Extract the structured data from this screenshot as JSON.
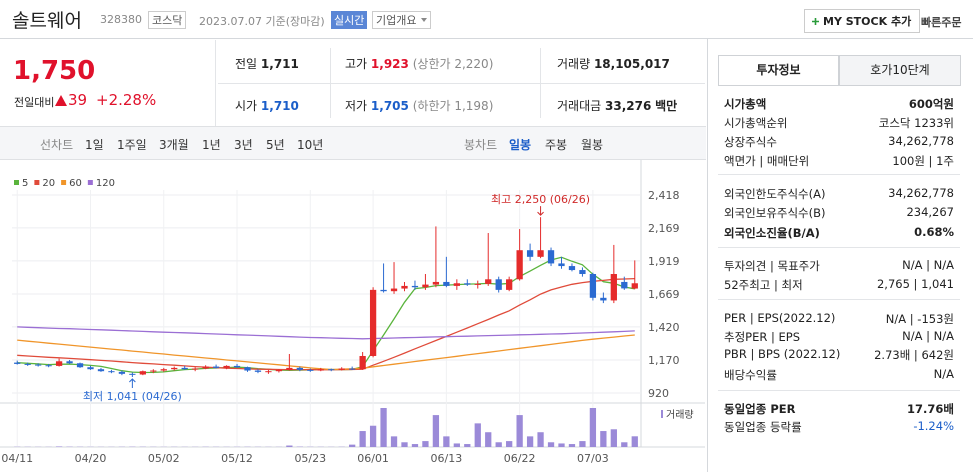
{
  "header": {
    "name": "솔트웨어",
    "code": "328380",
    "market": "코스닥",
    "date": "2023.07.07 기준(장마감)",
    "badge": "실시간",
    "company_button": "기업개요",
    "mystock_button": "MY STOCK 추가",
    "order_button": "빠른주문"
  },
  "quote": {
    "price": "1,750",
    "change_label": "전일대비",
    "change": "39",
    "change_rate": "+2.28%"
  },
  "summary": [
    [
      {
        "label": "전일",
        "value": "1,711"
      },
      {
        "label": "고가",
        "value": "1,923",
        "note": "(상한가 2,220)"
      },
      {
        "label": "거래량",
        "value": "18,105,017"
      }
    ],
    [
      {
        "label": "시가",
        "value": "1,710"
      },
      {
        "label": "저가",
        "value": "1,705",
        "note": "(하한가 1,198)"
      },
      {
        "label": "거래대금",
        "value": "33,276",
        "unit": "백만"
      }
    ]
  ],
  "period_tabs": {
    "line_label": "선차트",
    "line": [
      "1일",
      "1주일",
      "3개월",
      "1년",
      "3년",
      "5년",
      "10년"
    ],
    "candle_label": "봉차트",
    "candle": [
      "일봉",
      "주봉",
      "월봉"
    ]
  },
  "chart_data": {
    "type": "candlestick",
    "categories": [
      "04/11",
      null,
      null,
      null,
      null,
      null,
      null,
      "04/20",
      null,
      null,
      null,
      null,
      null,
      null,
      "05/02",
      null,
      null,
      null,
      null,
      null,
      null,
      "05/12",
      null,
      null,
      null,
      null,
      null,
      null,
      "05/23",
      null,
      null,
      null,
      null,
      null,
      "06/01",
      null,
      null,
      null,
      null,
      null,
      null,
      "06/13",
      null,
      null,
      null,
      null,
      null,
      null,
      "06/22",
      null,
      null,
      null,
      null,
      null,
      null,
      "07/03",
      null,
      null,
      null,
      null
    ],
    "open": [
      1150,
      1140,
      1135,
      1130,
      1125,
      1160,
      1145,
      1115,
      1100,
      1085,
      1080,
      1065,
      1060,
      1085,
      1090,
      1100,
      1110,
      1100,
      1105,
      1120,
      1110,
      1125,
      1115,
      1090,
      1080,
      1085,
      1095,
      1110,
      1095,
      1090,
      1100,
      1095,
      1105,
      1100,
      1200,
      1700,
      1690,
      1710,
      1730,
      1720,
      1740,
      1760,
      1730,
      1750,
      1740,
      1745,
      1780,
      1700,
      1780,
      2000,
      1950,
      2000,
      1900,
      1880,
      1850,
      1820,
      1640,
      1620,
      1760,
      1710
    ],
    "high": [
      1165,
      1150,
      1145,
      1140,
      1180,
      1170,
      1150,
      1125,
      1110,
      1095,
      1090,
      1075,
      1090,
      1100,
      1110,
      1120,
      1125,
      1115,
      1130,
      1135,
      1130,
      1140,
      1120,
      1100,
      1095,
      1100,
      1215,
      1120,
      1105,
      1110,
      1105,
      1115,
      1120,
      1230,
      1720,
      1900,
      1910,
      1760,
      1770,
      1820,
      2180,
      1950,
      1780,
      1780,
      1770,
      2130,
      1800,
      1800,
      2160,
      2050,
      2250,
      2020,
      1950,
      1900,
      1870,
      1830,
      1680,
      2040,
      1800,
      1923
    ],
    "low": [
      1135,
      1125,
      1120,
      1115,
      1120,
      1140,
      1110,
      1095,
      1080,
      1070,
      1055,
      1041,
      1055,
      1070,
      1080,
      1090,
      1095,
      1085,
      1100,
      1105,
      1100,
      1110,
      1080,
      1070,
      1065,
      1075,
      1090,
      1085,
      1080,
      1085,
      1085,
      1090,
      1095,
      1095,
      1190,
      1680,
      1670,
      1690,
      1700,
      1700,
      1720,
      1720,
      1700,
      1730,
      1710,
      1730,
      1680,
      1690,
      1770,
      1920,
      1940,
      1880,
      1860,
      1840,
      1800,
      1620,
      1600,
      1600,
      1700,
      1705
    ],
    "close": [
      1140,
      1135,
      1130,
      1125,
      1160,
      1145,
      1115,
      1100,
      1085,
      1080,
      1065,
      1060,
      1085,
      1090,
      1100,
      1110,
      1100,
      1105,
      1120,
      1110,
      1125,
      1115,
      1090,
      1080,
      1085,
      1095,
      1110,
      1095,
      1090,
      1100,
      1095,
      1105,
      1100,
      1200,
      1700,
      1690,
      1710,
      1730,
      1720,
      1740,
      1760,
      1730,
      1750,
      1740,
      1745,
      1780,
      1700,
      1780,
      2000,
      1950,
      2000,
      1900,
      1880,
      1850,
      1820,
      1640,
      1620,
      1820,
      1711,
      1750
    ],
    "volume": [
      400000,
      350000,
      300000,
      300000,
      900000,
      500000,
      400000,
      350000,
      300000,
      300000,
      400000,
      500000,
      450000,
      350000,
      300000,
      350000,
      300000,
      300000,
      400000,
      350000,
      300000,
      350000,
      400000,
      350000,
      300000,
      300000,
      2500000,
      600000,
      400000,
      350000,
      300000,
      400000,
      4000000,
      27000000,
      36000000,
      66000000,
      18000000,
      8000000,
      5000000,
      10000000,
      54000000,
      18000000,
      6000000,
      5000000,
      40000000,
      25000000,
      8000000,
      10000000,
      54000000,
      18000000,
      25000000,
      8000000,
      6000000,
      5000000,
      10000000,
      66000000,
      27000000,
      30000000,
      8000000,
      18105017
    ],
    "volume_label": "거래량",
    "series": [
      {
        "name": "5",
        "color": "#5ab43c",
        "values": [
          1150,
          1145,
          1140,
          1135,
          1138,
          1139,
          1135,
          1129,
          1121,
          1105,
          1089,
          1078,
          1075,
          1076,
          1080,
          1089,
          1097,
          1101,
          1107,
          1109,
          1112,
          1115,
          1112,
          1104,
          1099,
          1093,
          1092,
          1093,
          1095,
          1098,
          1098,
          1097,
          1098,
          1120,
          1240,
          1359,
          1480,
          1606,
          1710,
          1718,
          1732,
          1736,
          1740,
          1744,
          1745,
          1749,
          1743,
          1749,
          1801,
          1842,
          1886,
          1926,
          1946,
          1916,
          1890,
          1818,
          1762,
          1750,
          1722,
          1708
        ]
      },
      {
        "name": "20",
        "color": "#e04b3a",
        "values": [
          1205,
          1200,
          1195,
          1190,
          1186,
          1182,
          1177,
          1172,
          1167,
          1162,
          1156,
          1150,
          1145,
          1140,
          1135,
          1130,
          1125,
          1120,
          1116,
          1112,
          1108,
          1105,
          1102,
          1100,
          1099,
          1098,
          1097,
          1097,
          1096,
          1096,
          1096,
          1097,
          1098,
          1100,
          1130,
          1160,
          1190,
          1222,
          1254,
          1285,
          1317,
          1348,
          1380,
          1412,
          1444,
          1476,
          1510,
          1542,
          1585,
          1625,
          1668,
          1700,
          1722,
          1742,
          1755,
          1765,
          1772,
          1780,
          1782,
          1785
        ]
      },
      {
        "name": "60",
        "color": "#f0952a",
        "values": [
          1320,
          1312,
          1305,
          1297,
          1290,
          1282,
          1275,
          1267,
          1260,
          1252,
          1245,
          1237,
          1230,
          1222,
          1215,
          1207,
          1200,
          1192,
          1185,
          1178,
          1170,
          1163,
          1155,
          1148,
          1140,
          1133,
          1125,
          1118,
          1110,
          1103,
          1098,
          1100,
          1103,
          1108,
          1118,
          1128,
          1138,
          1148,
          1158,
          1168,
          1178,
          1188,
          1198,
          1208,
          1218,
          1228,
          1238,
          1248,
          1258,
          1268,
          1278,
          1288,
          1298,
          1308,
          1318,
          1327,
          1335,
          1343,
          1351,
          1359
        ]
      },
      {
        "name": "120",
        "color": "#9b6fd4",
        "values": [
          1420,
          1417,
          1414,
          1411,
          1408,
          1406,
          1403,
          1400,
          1398,
          1395,
          1392,
          1389,
          1386,
          1383,
          1380,
          1378,
          1375,
          1372,
          1369,
          1366,
          1363,
          1360,
          1358,
          1355,
          1352,
          1349,
          1346,
          1343,
          1340,
          1338,
          1336,
          1334,
          1332,
          1330,
          1332,
          1334,
          1336,
          1338,
          1340,
          1342,
          1344,
          1346,
          1348,
          1350,
          1352,
          1354,
          1356,
          1358,
          1360,
          1362,
          1364,
          1366,
          1368,
          1371,
          1374,
          1377,
          1380,
          1383,
          1386,
          1390
        ]
      }
    ],
    "annotations": {
      "high": "최고 2,250 (06/26)",
      "low": "최저 1,041 (04/26)"
    },
    "ylim": [
      852,
      2531
    ],
    "yticks": [
      920,
      {
        "value": 1170,
        "label": "1,170"
      },
      {
        "value": 1420,
        "label": "1,420"
      },
      {
        "value": 1669,
        "label": "1,669"
      },
      {
        "value": 1919,
        "label": "1,919"
      },
      {
        "value": 2169,
        "label": "2,169"
      },
      {
        "value": 2418,
        "label": "2,418"
      }
    ],
    "grid": true,
    "up_color": "#e52b2b",
    "down_color": "#2b6ad1"
  },
  "info_tabs": [
    "투자정보",
    "호가10단계"
  ],
  "info_sections": [
    [
      {
        "label": "시가총액",
        "value": "600억원"
      },
      {
        "label": "시가총액순위",
        "value": "코스닥 1233위"
      },
      {
        "label": "상장주식수",
        "value": "34,262,778"
      },
      {
        "label": "액면가 | 매매단위",
        "value": "100원 | 1주"
      }
    ],
    [
      {
        "label": "외국인한도주식수(A)",
        "value": "34,262,778"
      },
      {
        "label": "외국인보유주식수(B)",
        "value": "234,267"
      },
      {
        "label": "외국인소진율(B/A)",
        "value": "0.68%"
      }
    ],
    [
      {
        "label": "투자의견 | 목표주가",
        "value": "N/A | N/A"
      },
      {
        "label": "52주최고 | 최저",
        "value": "2,765 | 1,041"
      }
    ],
    [
      {
        "label": "PER | EPS(2022.12)",
        "value": "N/A | -153원"
      },
      {
        "label": "추정PER | EPS",
        "value": "N/A | N/A"
      },
      {
        "label": "PBR | BPS (2022.12)",
        "value": "2.73배 | 642원"
      },
      {
        "label": "배당수익률",
        "value": "N/A"
      }
    ],
    [
      {
        "label": "동일업종 PER",
        "value": "17.76배"
      },
      {
        "label": "동일업종 등락률",
        "value": "-1.24%"
      }
    ]
  ]
}
